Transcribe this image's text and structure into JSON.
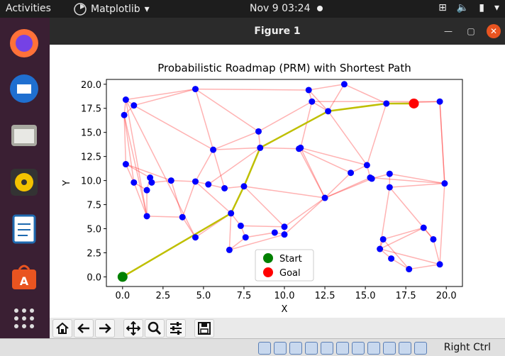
{
  "topbar": {
    "activities": "Activities",
    "app_name": "Matplotlib",
    "clock": "Nov 9  03:24"
  },
  "window": {
    "title": "Figure 1"
  },
  "toolbar": {
    "buttons": [
      "home-icon",
      "back-arrow-icon",
      "forward-arrow-icon",
      "pan-icon",
      "zoom-icon",
      "configure-subplots-icon",
      "save-icon"
    ]
  },
  "statusbar": {
    "host_key": "Right Ctrl"
  },
  "chart_data": {
    "type": "scatter",
    "title": "Probabilistic Roadmap (PRM) with Shortest Path",
    "xlabel": "X",
    "ylabel": "Y",
    "xlim": [
      -1,
      21
    ],
    "ylim": [
      -1,
      20.5
    ],
    "xticks": [
      "0.0",
      "2.5",
      "5.0",
      "7.5",
      "10.0",
      "12.5",
      "15.0",
      "17.5",
      "20.0"
    ],
    "yticks": [
      "0.0",
      "2.5",
      "5.0",
      "7.5",
      "10.0",
      "12.5",
      "15.0",
      "17.5",
      "20.0"
    ],
    "legend": {
      "position": "lower center",
      "entries": [
        "Start",
        "Goal"
      ]
    },
    "start": [
      0,
      0
    ],
    "goal": [
      18,
      18
    ],
    "nodes": [
      [
        0.2,
        18.4
      ],
      [
        0.7,
        17.8
      ],
      [
        0.1,
        16.8
      ],
      [
        4.5,
        19.5
      ],
      [
        0.2,
        11.7
      ],
      [
        0.7,
        9.8
      ],
      [
        1.5,
        9.0
      ],
      [
        1.7,
        10.3
      ],
      [
        1.8,
        9.8
      ],
      [
        3.0,
        10.0
      ],
      [
        4.5,
        9.9
      ],
      [
        5.3,
        9.6
      ],
      [
        6.3,
        9.2
      ],
      [
        7.5,
        9.4
      ],
      [
        1.5,
        6.3
      ],
      [
        3.7,
        6.2
      ],
      [
        4.5,
        4.1
      ],
      [
        6.7,
        6.6
      ],
      [
        7.3,
        5.3
      ],
      [
        7.6,
        4.1
      ],
      [
        6.6,
        2.8
      ],
      [
        9.4,
        4.6
      ],
      [
        10.0,
        4.4
      ],
      [
        10.0,
        5.2
      ],
      [
        5.6,
        13.2
      ],
      [
        8.4,
        15.1
      ],
      [
        8.5,
        13.4
      ],
      [
        10.9,
        13.3
      ],
      [
        11.0,
        13.4
      ],
      [
        11.5,
        19.4
      ],
      [
        11.7,
        18.2
      ],
      [
        12.7,
        17.2
      ],
      [
        13.7,
        20.0
      ],
      [
        12.5,
        8.2
      ],
      [
        14.1,
        10.8
      ],
      [
        15.1,
        11.6
      ],
      [
        15.3,
        10.3
      ],
      [
        15.4,
        10.2
      ],
      [
        16.5,
        10.7
      ],
      [
        16.5,
        9.3
      ],
      [
        16.3,
        18.0
      ],
      [
        19.6,
        18.2
      ],
      [
        19.9,
        9.7
      ],
      [
        18.6,
        5.1
      ],
      [
        19.2,
        3.9
      ],
      [
        19.6,
        1.3
      ],
      [
        17.7,
        0.8
      ],
      [
        16.1,
        3.9
      ],
      [
        15.9,
        2.9
      ],
      [
        16.6,
        1.9
      ]
    ],
    "edges": [
      [
        0,
        1
      ],
      [
        0,
        2
      ],
      [
        1,
        2
      ],
      [
        0,
        3
      ],
      [
        1,
        3
      ],
      [
        2,
        4
      ],
      [
        2,
        5
      ],
      [
        4,
        5
      ],
      [
        4,
        7
      ],
      [
        5,
        6
      ],
      [
        6,
        7
      ],
      [
        7,
        8
      ],
      [
        8,
        9
      ],
      [
        9,
        10
      ],
      [
        10,
        11
      ],
      [
        11,
        12
      ],
      [
        12,
        13
      ],
      [
        5,
        14
      ],
      [
        6,
        14
      ],
      [
        14,
        15
      ],
      [
        15,
        10
      ],
      [
        15,
        16
      ],
      [
        16,
        17
      ],
      [
        17,
        18
      ],
      [
        18,
        19
      ],
      [
        19,
        20
      ],
      [
        20,
        17
      ],
      [
        17,
        13
      ],
      [
        13,
        26
      ],
      [
        26,
        25
      ],
      [
        25,
        24
      ],
      [
        24,
        3
      ],
      [
        24,
        10
      ],
      [
        26,
        27
      ],
      [
        27,
        28
      ],
      [
        28,
        30
      ],
      [
        30,
        29
      ],
      [
        29,
        32
      ],
      [
        32,
        31
      ],
      [
        31,
        40
      ],
      [
        40,
        41
      ],
      [
        31,
        30
      ],
      [
        28,
        33
      ],
      [
        33,
        34
      ],
      [
        34,
        35
      ],
      [
        35,
        36
      ],
      [
        36,
        37
      ],
      [
        37,
        38
      ],
      [
        38,
        39
      ],
      [
        39,
        42
      ],
      [
        42,
        41
      ],
      [
        38,
        42
      ],
      [
        39,
        43
      ],
      [
        43,
        44
      ],
      [
        44,
        45
      ],
      [
        45,
        46
      ],
      [
        46,
        47
      ],
      [
        47,
        48
      ],
      [
        48,
        49
      ],
      [
        49,
        46
      ],
      [
        43,
        47
      ],
      [
        33,
        23
      ],
      [
        23,
        22
      ],
      [
        22,
        21
      ],
      [
        21,
        19
      ],
      [
        23,
        18
      ],
      [
        33,
        13
      ],
      [
        27,
        34
      ],
      [
        37,
        33
      ],
      [
        3,
        25
      ],
      [
        3,
        29
      ],
      [
        1,
        24
      ],
      [
        4,
        9
      ],
      [
        16,
        0
      ],
      [
        14,
        0
      ],
      [
        12,
        24
      ],
      [
        11,
        26
      ],
      [
        25,
        30
      ],
      [
        29,
        31
      ],
      [
        35,
        31
      ],
      [
        41,
        42
      ],
      [
        44,
        43
      ],
      [
        48,
        43
      ],
      [
        39,
        48
      ],
      [
        22,
        33
      ],
      [
        9,
        15
      ],
      [
        10,
        17
      ],
      [
        2,
        14
      ],
      [
        40,
        35
      ],
      [
        36,
        42
      ],
      [
        30,
        41
      ],
      [
        32,
        40
      ],
      [
        27,
        33
      ],
      [
        28,
        35
      ],
      [
        45,
        42
      ],
      [
        13,
        23
      ],
      [
        24,
        26
      ],
      [
        20,
        22
      ],
      [
        48,
        45
      ],
      [
        33,
        36
      ]
    ],
    "path": [
      [
        0,
        0
      ],
      [
        6.7,
        6.6
      ],
      [
        7.5,
        9.4
      ],
      [
        8.5,
        13.4
      ],
      [
        12.7,
        17.2
      ],
      [
        16.3,
        18.0
      ],
      [
        18,
        18
      ]
    ],
    "colors": {
      "node": "#0000ff",
      "edge": "#ff0000",
      "path": "#bfbf00",
      "start": "#008000",
      "goal": "#ff0000"
    }
  }
}
